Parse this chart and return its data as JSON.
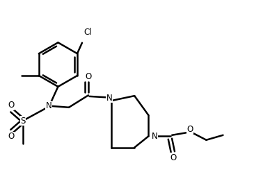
{
  "bg_color": "#ffffff",
  "line_color": "#000000",
  "line_width": 1.8,
  "font_size": 8.5,
  "figsize": [
    3.88,
    2.58
  ],
  "dpi": 100,
  "xlim": [
    0,
    10
  ],
  "ylim": [
    0,
    6.65
  ]
}
